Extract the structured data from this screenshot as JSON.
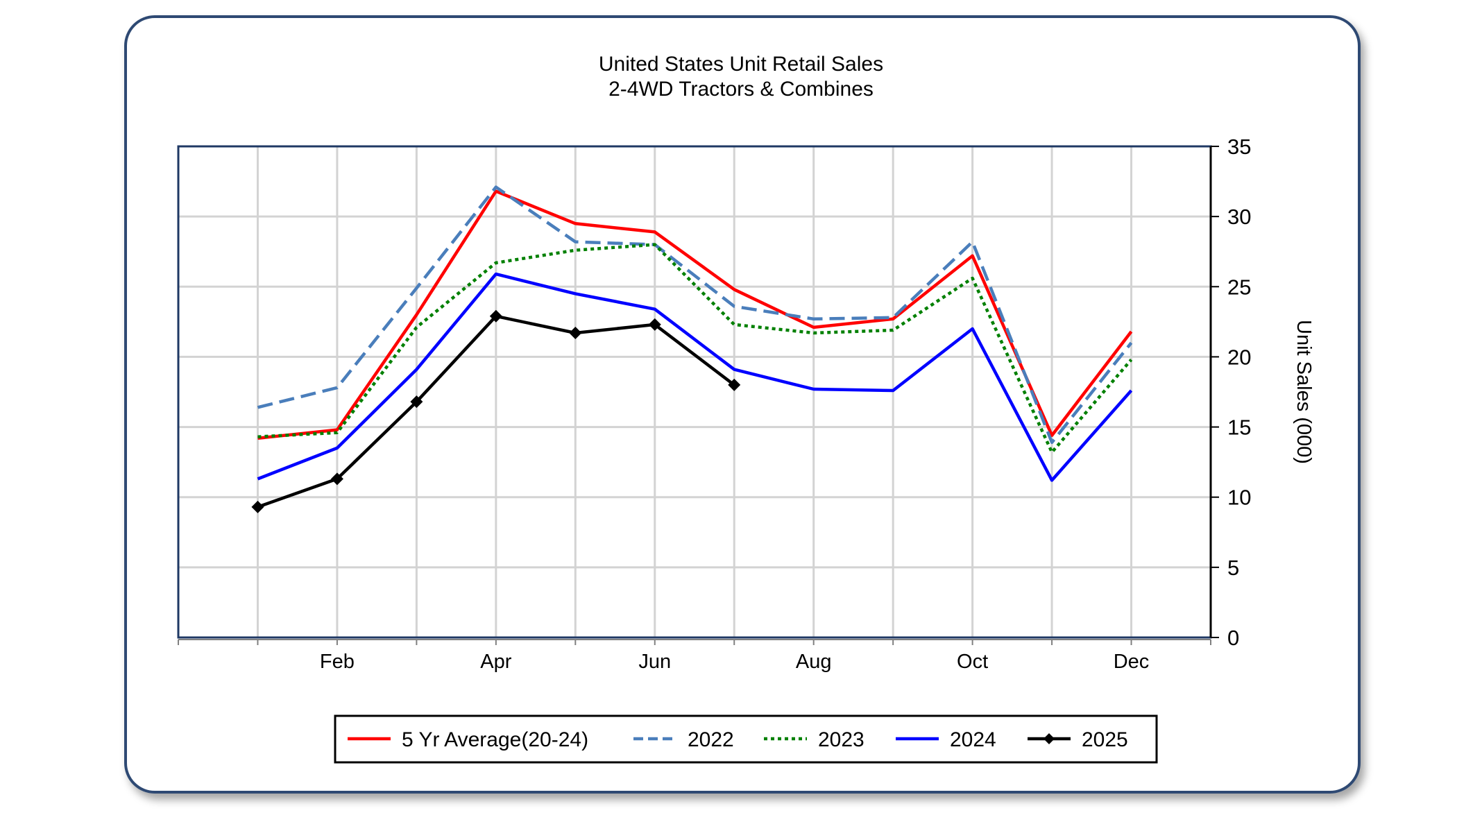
{
  "chart_data": {
    "type": "line",
    "title": "United States Unit Retail Sales",
    "subtitle": "2-4WD Tractors & Combines",
    "xlabel": "",
    "ylabel": "Unit Sales (000)",
    "x_tick_labels": [
      "Feb",
      "Apr",
      "Jun",
      "Aug",
      "Oct",
      "Dec"
    ],
    "x_tick_months": [
      2,
      4,
      6,
      8,
      10,
      12
    ],
    "ylim": [
      0,
      35
    ],
    "y_ticks": [
      0,
      5,
      10,
      15,
      20,
      25,
      30,
      35
    ],
    "y_axis_side": "right",
    "grid": true,
    "legend_placement": "bottom",
    "months": [
      1,
      2,
      3,
      4,
      5,
      6,
      7,
      8,
      9,
      10,
      11,
      12
    ],
    "series": [
      {
        "name": "5 Yr Average(20-24)",
        "color": "#ff0000",
        "style": "solid",
        "marker": "none",
        "values": [
          14.2,
          14.8,
          23.0,
          31.8,
          29.5,
          28.9,
          24.8,
          22.1,
          22.7,
          27.2,
          14.4,
          21.8
        ]
      },
      {
        "name": "2022",
        "color": "#4a7ebb",
        "style": "dashed",
        "marker": "none",
        "values": [
          16.4,
          17.8,
          24.9,
          32.1,
          28.2,
          28.0,
          23.6,
          22.7,
          22.8,
          28.2,
          13.9,
          21.0
        ]
      },
      {
        "name": "2023",
        "color": "#008000",
        "style": "dotted",
        "marker": "none",
        "values": [
          14.3,
          14.6,
          22.1,
          26.7,
          27.6,
          28.0,
          22.3,
          21.7,
          21.9,
          25.6,
          13.2,
          19.8
        ]
      },
      {
        "name": "2024",
        "color": "#0000ff",
        "style": "solid",
        "marker": "none",
        "values": [
          11.3,
          13.5,
          19.1,
          25.9,
          24.5,
          23.4,
          19.1,
          17.7,
          17.6,
          22.0,
          11.2,
          17.6
        ]
      },
      {
        "name": "2025",
        "color": "#000000",
        "style": "solid",
        "marker": "diamond",
        "values": [
          9.3,
          11.3,
          16.8,
          22.9,
          21.7,
          22.3,
          18.0,
          null,
          null,
          null,
          null,
          null
        ]
      }
    ]
  }
}
